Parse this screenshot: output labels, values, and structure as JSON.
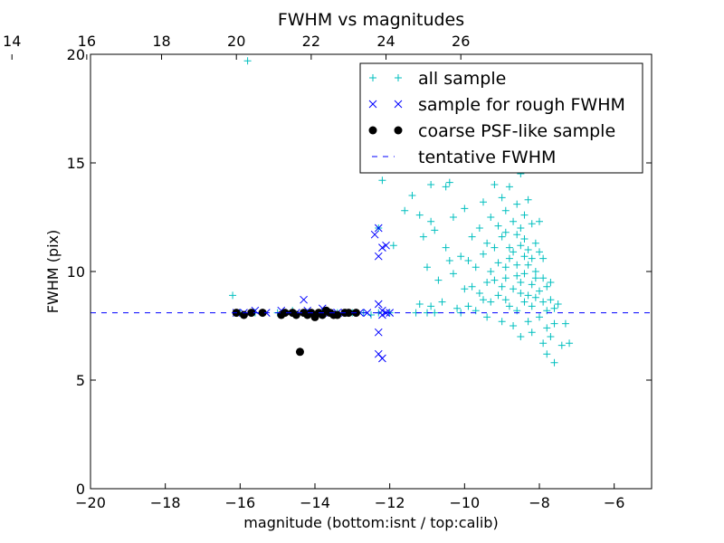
{
  "chart_data": {
    "type": "scatter",
    "title": "FWHM vs magnitudes",
    "xlabel": "magnitude (bottom:isnt / top:calib)",
    "ylabel": "FWHM (pix)",
    "xlim": [
      -20,
      -5
    ],
    "ylim": [
      0,
      20
    ],
    "x_ticks": [
      -20,
      -18,
      -16,
      -14,
      -12,
      -10,
      -8,
      -6
    ],
    "x_tick_labels": [
      "−20",
      "−18",
      "−16",
      "−14",
      "−12",
      "−10",
      "−8",
      "−6"
    ],
    "y_ticks": [
      0,
      5,
      10,
      15,
      20
    ],
    "y_tick_labels": [
      "0",
      "5",
      "10",
      "15",
      "20"
    ],
    "top_axis": {
      "offset": 36.1,
      "ticks": [
        14,
        16,
        18,
        20,
        22,
        24,
        26
      ],
      "tick_labels": [
        "14",
        "16",
        "18",
        "20",
        "22",
        "24",
        "26"
      ]
    },
    "legend_position": "upper-right",
    "grid": false,
    "series": [
      {
        "name": "all sample",
        "marker": "plus",
        "color": "#00bfbf",
        "points": [
          [
            -16.2,
            8.9
          ],
          [
            -15.8,
            19.7
          ],
          [
            -16.0,
            8.1
          ],
          [
            -15.6,
            8.1
          ],
          [
            -15.0,
            8.1
          ],
          [
            -14.6,
            8.2
          ],
          [
            -14.2,
            8.1
          ],
          [
            -13.8,
            8.1
          ],
          [
            -13.4,
            8.1
          ],
          [
            -13.0,
            8.1
          ],
          [
            -12.7,
            8.1
          ],
          [
            -12.5,
            8.0
          ],
          [
            -12.3,
            8.1
          ],
          [
            -12.2,
            14.2
          ],
          [
            -12.3,
            12.0
          ],
          [
            -12.0,
            8.1
          ],
          [
            -11.9,
            11.2
          ],
          [
            -11.9,
            16.3
          ],
          [
            -11.6,
            12.8
          ],
          [
            -11.4,
            13.5
          ],
          [
            -11.3,
            8.1
          ],
          [
            -11.2,
            12.6
          ],
          [
            -11.2,
            8.5
          ],
          [
            -11.1,
            11.6
          ],
          [
            -11.0,
            8.1
          ],
          [
            -11.0,
            10.2
          ],
          [
            -10.9,
            8.4
          ],
          [
            -10.9,
            12.3
          ],
          [
            -10.8,
            8.1
          ],
          [
            -10.8,
            11.9
          ],
          [
            -10.7,
            9.6
          ],
          [
            -10.6,
            8.6
          ],
          [
            -10.6,
            15.1
          ],
          [
            -10.5,
            11.1
          ],
          [
            -10.4,
            14.1
          ],
          [
            -10.4,
            10.5
          ],
          [
            -10.3,
            12.5
          ],
          [
            -10.3,
            9.9
          ],
          [
            -10.2,
            8.3
          ],
          [
            -10.1,
            10.7
          ],
          [
            -10.1,
            8.1
          ],
          [
            -10.0,
            9.2
          ],
          [
            -10.0,
            12.9
          ],
          [
            -9.9,
            10.5
          ],
          [
            -9.9,
            8.4
          ],
          [
            -9.8,
            11.6
          ],
          [
            -9.8,
            9.3
          ],
          [
            -9.7,
            8.2
          ],
          [
            -9.7,
            10.2
          ],
          [
            -9.6,
            12.0
          ],
          [
            -9.6,
            9.0
          ],
          [
            -9.5,
            10.8
          ],
          [
            -9.5,
            8.7
          ],
          [
            -9.4,
            9.5
          ],
          [
            -9.4,
            11.3
          ],
          [
            -9.4,
            7.9
          ],
          [
            -9.3,
            10.0
          ],
          [
            -9.3,
            12.5
          ],
          [
            -9.3,
            8.6
          ],
          [
            -9.2,
            9.6
          ],
          [
            -9.2,
            11.1
          ],
          [
            -9.2,
            14.0
          ],
          [
            -9.1,
            8.9
          ],
          [
            -9.1,
            10.4
          ],
          [
            -9.1,
            12.1
          ],
          [
            -9.0,
            9.3
          ],
          [
            -9.0,
            11.6
          ],
          [
            -9.0,
            7.7
          ],
          [
            -9.0,
            13.4
          ],
          [
            -8.9,
            10.2
          ],
          [
            -8.9,
            8.7
          ],
          [
            -8.9,
            12.8
          ],
          [
            -8.9,
            9.7
          ],
          [
            -8.8,
            11.1
          ],
          [
            -8.8,
            8.4
          ],
          [
            -8.8,
            13.9
          ],
          [
            -8.8,
            10.6
          ],
          [
            -8.7,
            9.2
          ],
          [
            -8.7,
            12.3
          ],
          [
            -8.7,
            7.5
          ],
          [
            -8.7,
            10.9
          ],
          [
            -8.7,
            15.2
          ],
          [
            -8.6,
            9.8
          ],
          [
            -8.6,
            11.7
          ],
          [
            -8.6,
            8.2
          ],
          [
            -8.6,
            13.1
          ],
          [
            -8.6,
            10.3
          ],
          [
            -8.5,
            9.0
          ],
          [
            -8.5,
            12.0
          ],
          [
            -8.5,
            7.0
          ],
          [
            -8.5,
            11.2
          ],
          [
            -8.5,
            14.5
          ],
          [
            -8.5,
            9.5
          ],
          [
            -8.4,
            10.7
          ],
          [
            -8.4,
            8.6
          ],
          [
            -8.4,
            12.6
          ],
          [
            -8.4,
            9.9
          ],
          [
            -8.4,
            11.5
          ],
          [
            -8.3,
            8.9
          ],
          [
            -8.3,
            10.3
          ],
          [
            -8.3,
            13.3
          ],
          [
            -8.3,
            7.7
          ],
          [
            -8.3,
            11.0
          ],
          [
            -8.2,
            9.4
          ],
          [
            -8.2,
            12.2
          ],
          [
            -8.2,
            8.4
          ],
          [
            -8.2,
            10.6
          ],
          [
            -8.2,
            7.2
          ],
          [
            -8.1,
            9.7
          ],
          [
            -8.1,
            11.3
          ],
          [
            -8.1,
            8.8
          ],
          [
            -8.1,
            10.0
          ],
          [
            -8.0,
            9.1
          ],
          [
            -8.0,
            10.9
          ],
          [
            -8.0,
            7.9
          ],
          [
            -8.0,
            12.3
          ],
          [
            -7.9,
            8.6
          ],
          [
            -7.9,
            9.7
          ],
          [
            -7.9,
            6.7
          ],
          [
            -7.9,
            10.6
          ],
          [
            -7.8,
            8.2
          ],
          [
            -7.8,
            9.3
          ],
          [
            -7.8,
            7.4
          ],
          [
            -7.8,
            6.2
          ],
          [
            -7.7,
            8.7
          ],
          [
            -7.7,
            9.5
          ],
          [
            -7.7,
            7.0
          ],
          [
            -7.6,
            8.3
          ],
          [
            -7.6,
            7.6
          ],
          [
            -7.6,
            5.8
          ],
          [
            -7.5,
            8.5
          ],
          [
            -7.4,
            6.6
          ],
          [
            -7.3,
            7.6
          ],
          [
            -7.2,
            6.7
          ],
          [
            -8.9,
            11.8
          ],
          [
            -9.5,
            13.2
          ],
          [
            -10.5,
            13.9
          ],
          [
            -10.9,
            14.0
          ],
          [
            -8.3,
            14.9
          ],
          [
            -8.6,
            16.6
          ]
        ]
      },
      {
        "name": "sample for rough FWHM",
        "marker": "x",
        "color": "#0000ff",
        "points": [
          [
            -16.1,
            8.1
          ],
          [
            -15.9,
            8.1
          ],
          [
            -15.6,
            8.2
          ],
          [
            -15.3,
            8.1
          ],
          [
            -14.9,
            8.2
          ],
          [
            -14.7,
            8.1
          ],
          [
            -14.5,
            8.1
          ],
          [
            -14.3,
            8.7
          ],
          [
            -14.2,
            8.2
          ],
          [
            -14.0,
            8.1
          ],
          [
            -13.8,
            8.3
          ],
          [
            -13.6,
            8.1
          ],
          [
            -13.4,
            8.1
          ],
          [
            -13.2,
            8.1
          ],
          [
            -13.0,
            8.1
          ],
          [
            -12.8,
            8.1
          ],
          [
            -12.6,
            8.1
          ],
          [
            -12.4,
            11.7
          ],
          [
            -12.3,
            10.7
          ],
          [
            -12.2,
            11.1
          ],
          [
            -12.1,
            11.2
          ],
          [
            -12.3,
            12.0
          ],
          [
            -12.3,
            8.5
          ],
          [
            -12.3,
            7.2
          ],
          [
            -12.3,
            6.2
          ],
          [
            -12.2,
            6.0
          ],
          [
            -12.2,
            8.2
          ],
          [
            -12.1,
            8.1
          ],
          [
            -12.0,
            8.1
          ],
          [
            -12.2,
            8.0
          ]
        ]
      },
      {
        "name": "coarse PSF-like sample",
        "marker": "circle",
        "color": "#000000",
        "points": [
          [
            -16.1,
            8.1
          ],
          [
            -15.9,
            8.0
          ],
          [
            -15.7,
            8.1
          ],
          [
            -15.4,
            8.1
          ],
          [
            -14.9,
            8.0
          ],
          [
            -14.8,
            8.1
          ],
          [
            -14.6,
            8.1
          ],
          [
            -14.5,
            8.0
          ],
          [
            -14.4,
            6.3
          ],
          [
            -14.3,
            8.1
          ],
          [
            -14.2,
            8.0
          ],
          [
            -14.1,
            8.1
          ],
          [
            -14.0,
            7.9
          ],
          [
            -13.9,
            8.1
          ],
          [
            -13.8,
            8.0
          ],
          [
            -13.7,
            8.2
          ],
          [
            -13.6,
            8.1
          ],
          [
            -13.5,
            8.0
          ],
          [
            -13.4,
            8.0
          ],
          [
            -13.2,
            8.1
          ],
          [
            -13.1,
            8.1
          ],
          [
            -12.9,
            8.1
          ]
        ]
      },
      {
        "name": "tentative FWHM",
        "marker": "dashed-line",
        "color": "#0000ff",
        "y": 8.1
      }
    ]
  }
}
